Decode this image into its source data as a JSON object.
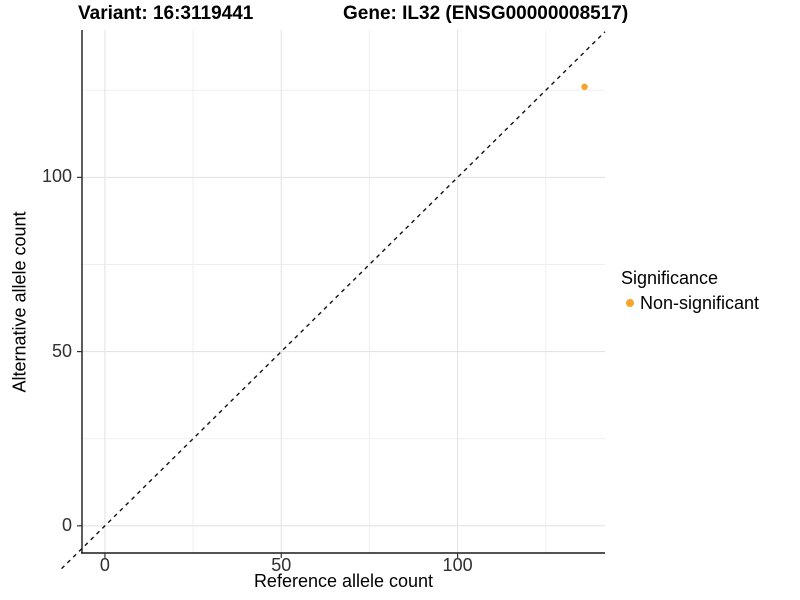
{
  "header": {
    "title_left": "Variant: 16:3119441",
    "title_right": "Gene: IL32 (ENSG00000008517)"
  },
  "chart_data": {
    "type": "scatter",
    "title_left": "Variant: 16:3119441",
    "title_right": "Gene: IL32 (ENSG00000008517)",
    "xlabel": "Reference allele count",
    "ylabel": "Alternative allele count",
    "xlim": [
      -6.5,
      141.8
    ],
    "ylim": [
      -7.8,
      142.3
    ],
    "x_major_ticks": [
      0,
      50,
      100
    ],
    "x_minor_ticks": [
      25,
      75,
      125
    ],
    "y_major_ticks": [
      0,
      50,
      100
    ],
    "y_minor_ticks": [
      25,
      75,
      125
    ],
    "grid": "major+minor",
    "series": [
      {
        "name": "Non-significant",
        "color": "#F7A62B",
        "points": [
          {
            "x": 136,
            "y": 126
          }
        ]
      }
    ],
    "reference_line": {
      "type": "identity",
      "slope": 1,
      "intercept": 0,
      "linetype": "dashed",
      "color": "#111111"
    },
    "legend": {
      "title": "Significance",
      "position": "right",
      "items": [
        {
          "label": "Non-significant",
          "color": "#F7A62B"
        }
      ]
    }
  },
  "colors": {
    "background": "#FFFFFF",
    "grid_major": "#E4E4E4",
    "grid_minor": "#EFEFEF",
    "axis_line": "#1A1A1A",
    "tick_mark": "#333333",
    "tick_label": "#303030",
    "point": "#F7A62B"
  }
}
